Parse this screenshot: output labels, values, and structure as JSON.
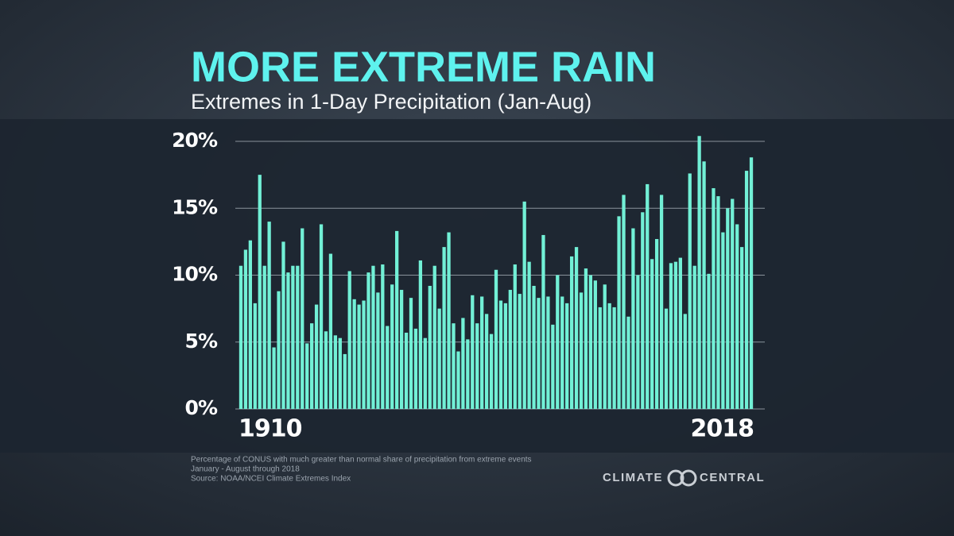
{
  "chart_data": {
    "type": "bar",
    "title": "MORE EXTREME RAIN",
    "subtitle": "Extremes in 1-Day Precipitation (Jan-Aug)",
    "notes": [
      "Percentage of CONUS with much greater than normal share of precipitation from extreme events",
      "January - August through 2018",
      "Source: NOAA/NCEI Climate Extremes Index"
    ],
    "brand": [
      "CLIMATE",
      "CENTRAL"
    ],
    "color": "#72f0d6",
    "grid": true,
    "xlim": [
      1909.5,
      2018.5
    ],
    "xticks": [
      1910,
      2018
    ],
    "ylim": [
      0,
      20
    ],
    "yticks": [
      {
        "value": 0,
        "label": "0%"
      },
      {
        "value": 5,
        "label": "5%"
      },
      {
        "value": 10,
        "label": "10%"
      },
      {
        "value": 15,
        "label": "15%"
      },
      {
        "value": 20,
        "label": "20%"
      }
    ],
    "x": [
      1910,
      1911,
      1912,
      1913,
      1914,
      1915,
      1916,
      1917,
      1918,
      1919,
      1920,
      1921,
      1922,
      1923,
      1924,
      1925,
      1926,
      1927,
      1928,
      1929,
      1930,
      1931,
      1932,
      1933,
      1934,
      1935,
      1936,
      1937,
      1938,
      1939,
      1940,
      1941,
      1942,
      1943,
      1944,
      1945,
      1946,
      1947,
      1948,
      1949,
      1950,
      1951,
      1952,
      1953,
      1954,
      1955,
      1956,
      1957,
      1958,
      1959,
      1960,
      1961,
      1962,
      1963,
      1964,
      1965,
      1966,
      1967,
      1968,
      1969,
      1970,
      1971,
      1972,
      1973,
      1974,
      1975,
      1976,
      1977,
      1978,
      1979,
      1980,
      1981,
      1982,
      1983,
      1984,
      1985,
      1986,
      1987,
      1988,
      1989,
      1990,
      1991,
      1992,
      1993,
      1994,
      1995,
      1996,
      1997,
      1998,
      1999,
      2000,
      2001,
      2002,
      2003,
      2004,
      2005,
      2006,
      2007,
      2008,
      2009,
      2010,
      2011,
      2012,
      2013,
      2014,
      2015,
      2016,
      2017,
      2018
    ],
    "values": [
      10.7,
      11.9,
      12.6,
      7.9,
      17.5,
      10.7,
      14.0,
      4.6,
      8.8,
      12.5,
      10.2,
      10.7,
      10.7,
      13.5,
      4.9,
      6.4,
      7.8,
      13.8,
      5.8,
      11.6,
      5.5,
      5.3,
      4.1,
      10.3,
      8.2,
      7.8,
      8.1,
      10.2,
      10.7,
      8.7,
      10.8,
      6.2,
      9.3,
      13.3,
      8.9,
      5.7,
      8.3,
      6.0,
      11.1,
      5.3,
      9.2,
      10.7,
      7.5,
      12.1,
      13.2,
      6.4,
      4.3,
      6.8,
      5.2,
      8.5,
      6.4,
      8.4,
      7.1,
      5.6,
      10.4,
      8.1,
      7.9,
      8.9,
      10.8,
      8.6,
      15.5,
      11.0,
      9.2,
      8.3,
      13.0,
      8.4,
      6.3,
      10.0,
      8.4,
      7.9,
      11.4,
      12.1,
      8.7,
      10.5,
      10.0,
      9.6,
      7.6,
      9.3,
      7.9,
      7.6,
      14.4,
      16.0,
      6.9,
      13.5,
      10.0,
      14.7,
      16.8,
      11.2,
      12.7,
      16.0,
      7.5,
      10.9,
      11.0,
      11.3,
      7.1,
      17.6,
      10.7,
      20.4,
      18.5,
      10.1,
      16.5,
      15.9,
      13.2,
      15.0,
      15.7,
      13.8,
      12.1,
      17.8,
      18.8
    ]
  }
}
